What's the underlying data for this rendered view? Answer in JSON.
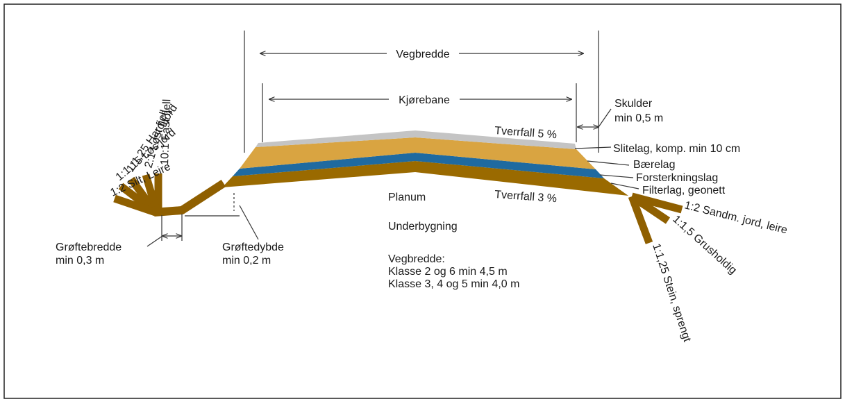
{
  "colors": {
    "surface": "#c4c4c4",
    "base": "#d9a441",
    "reinforcement": "#1f6aa0",
    "filter": "#9a6a00",
    "slope": "#8f5f00",
    "line": "#333333"
  },
  "labels": {
    "vegbredde": "Vegbredde",
    "kjorebane": "Kjørebane",
    "skulder_title": "Skulder",
    "skulder_min": "min 0,5 m",
    "tverrfall_top": "Tverrfall 5 %",
    "tverrfall_bottom": "Tverrfall 3 %",
    "slitelag": "Slitelag, komp. min 10 cm",
    "baerelag": "Bærelag",
    "forsterkningslag": "Forsterkningslag",
    "filterlag": "Filterlag, geonett",
    "planum": "Planum",
    "underbygning": "Underbygning",
    "vegbredde_note_title": "Vegbredde:",
    "vegbredde_note_line1": "Klasse 2 og 6 min 4,5 m",
    "vegbredde_note_line2": "Klasse 3, 4 og 5 min 4,0 m",
    "groftebredde_title": "Grøftebredde",
    "groftebredde_min": "min 0,3 m",
    "groftedybde_title": "Grøftedybde",
    "groftedybde_min": "min 0,2 m"
  },
  "left_slopes": [
    {
      "label": "10:1 Fast fjell"
    },
    {
      "label": "2:1 Løst fjell"
    },
    {
      "label": "1:1,25 Hard jord"
    },
    {
      "label": "1:1,15 Løs jord"
    },
    {
      "label": "1:2 Silt, Leire"
    }
  ],
  "right_slopes": [
    {
      "label": "1:2 Sandm. jord, leire"
    },
    {
      "label": "1:1,5 Grusholdig"
    },
    {
      "label": "1:1,25 Stein, sprengt"
    }
  ]
}
